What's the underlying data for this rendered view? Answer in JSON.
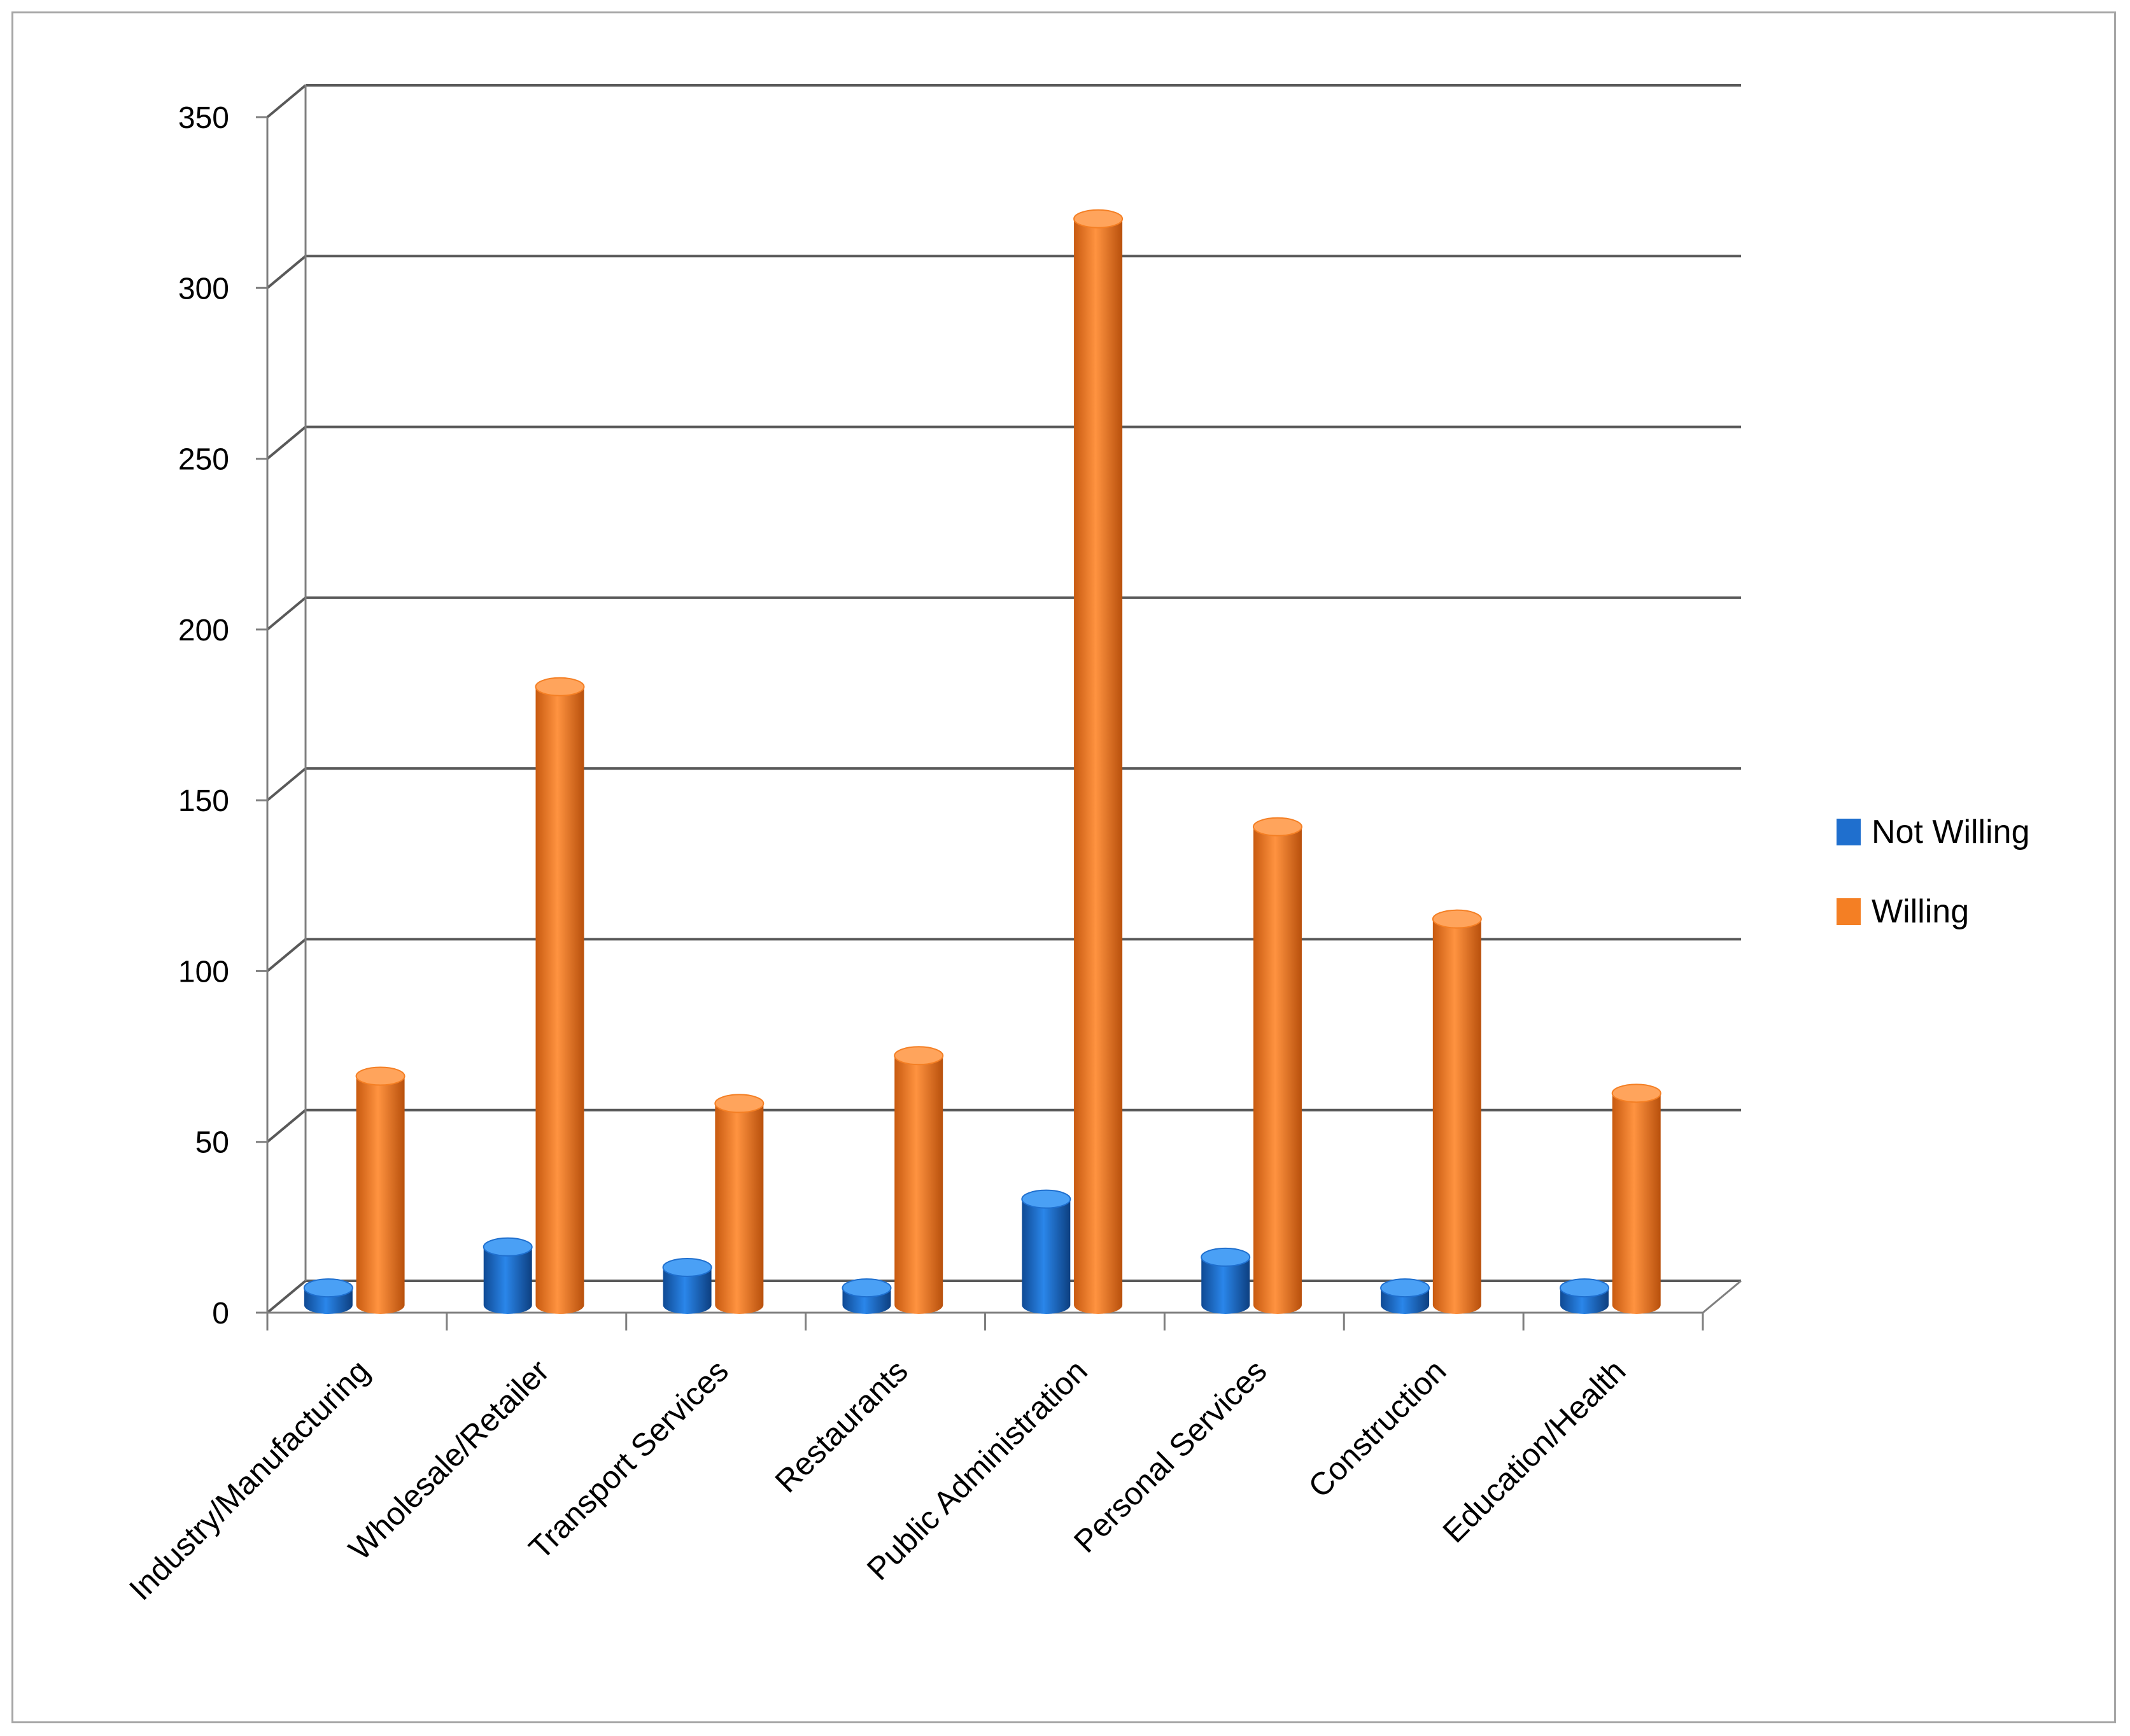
{
  "chart_data": {
    "type": "bar",
    "categories": [
      "Industry/Manufacturing",
      "Wholesale/Retailer",
      "Transport Services",
      "Restaurants",
      "Public Administration",
      "Personal Services",
      "Construction",
      "Education/Health"
    ],
    "series": [
      {
        "name": "Not Willing",
        "values": [
          5,
          17,
          11,
          5,
          31,
          14,
          5,
          5
        ],
        "color": "#1f6fce"
      },
      {
        "name": "Willing",
        "values": [
          67,
          181,
          59,
          73,
          318,
          140,
          113,
          62
        ],
        "color": "#f47f24"
      }
    ],
    "title": "",
    "xlabel": "",
    "ylabel": "",
    "ylim": [
      0,
      350
    ],
    "yticks": [
      0,
      50,
      100,
      150,
      200,
      250,
      300,
      350
    ],
    "grid": true,
    "legend": "right",
    "style": "3d-cylinder"
  }
}
